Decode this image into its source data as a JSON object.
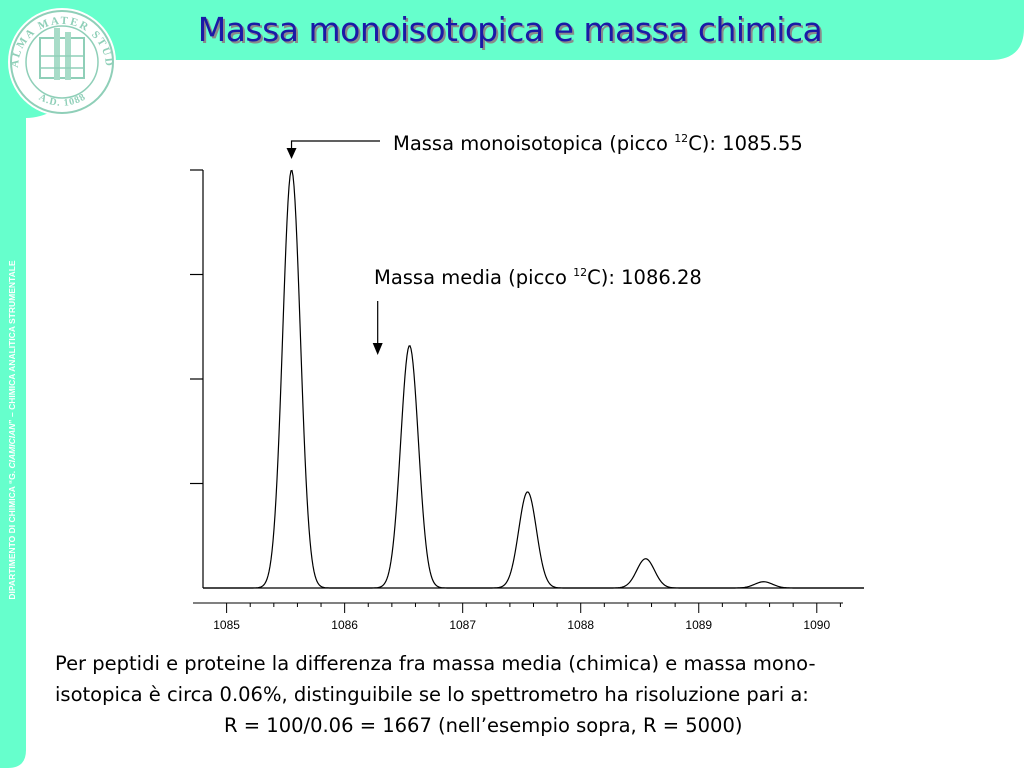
{
  "slide": {
    "title": "Massa monoisotopica e massa chimica",
    "side_text_pre": "DIPARTIMENTO DI CHIMICA “G. ",
    "side_text_italic": "CIAMICIAN",
    "side_text_post": "” – CHIMICA ANALITICA STRUMENTALE",
    "seal_text": "ALMA MATER STUDIORUM",
    "seal_year": "A.D. 1088",
    "colors": {
      "accent": "#66ffcc",
      "title": "#1a1aa6"
    }
  },
  "annotations": {
    "mono_pre": "Massa monoisotopica (picco ",
    "mono_sup": "12",
    "mono_post": "C): 1085.55",
    "media_pre": "Massa media (picco ",
    "media_sup": "12",
    "media_post": "C): 1086.28"
  },
  "body": {
    "line1": "Per peptidi e proteine la differenza fra massa media (chimica) e massa mono-",
    "line2": "isotopica è circa 0.06%, distinguibile se lo spettrometro ha risoluzione pari a:",
    "line3": "R = 100/0.06 = 1667 (nell’esempio sopra, R = 5000)"
  },
  "chart_data": {
    "type": "line",
    "xlim": [
      1084.8,
      1090.4
    ],
    "ylim": [
      0,
      100
    ],
    "x_ticks": [
      "1085",
      "1086",
      "1087",
      "1088",
      "1089",
      "1090"
    ],
    "y_tick_values": [
      25,
      50,
      75,
      100
    ],
    "peaks": [
      {
        "x": 1085.55,
        "y": 100
      },
      {
        "x": 1086.55,
        "y": 58
      },
      {
        "x": 1087.55,
        "y": 23
      },
      {
        "x": 1088.55,
        "y": 7
      },
      {
        "x": 1089.55,
        "y": 1.5
      }
    ],
    "arrows": [
      {
        "target_x": 1085.55,
        "target_y": 100,
        "label": "mono"
      },
      {
        "target_x": 1086.28,
        "target_y": 58,
        "label": "media"
      }
    ]
  }
}
